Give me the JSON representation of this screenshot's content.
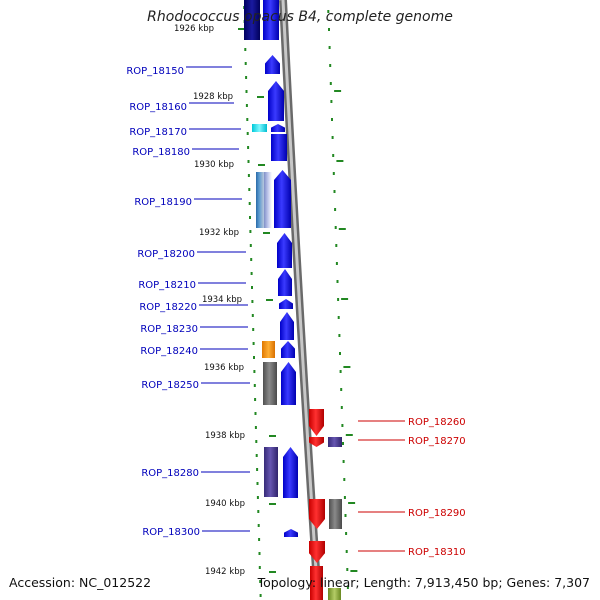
{
  "title": "Rhodococcus opacus B4, complete genome",
  "accession": "Accession: NC_012522",
  "topology": "Topology: linear; Length: 7,913,450 bp; Genes: 7,307",
  "colors": {
    "left_label": "#0000bb",
    "right_label": "#cc0000",
    "gene_blue": "#1010e0",
    "gene_red": "#ee0000",
    "gene_gray": "#707070",
    "gene_purple": "#4a3a90",
    "gene_cyan": "#00e5ee",
    "gene_orange": "#ff9900",
    "gene_green": "#88aa33",
    "tick": "#228822"
  },
  "kbp_labels": [
    "1926 kbp",
    "1928 kbp",
    "1930 kbp",
    "1932 kbp",
    "1934 kbp",
    "1936 kbp",
    "1938 kbp",
    "1940 kbp",
    "1942 kbp"
  ],
  "left_genes": [
    "ROP_18150",
    "ROP_18160",
    "ROP_18170",
    "ROP_18180",
    "ROP_18190",
    "ROP_18200",
    "ROP_18210",
    "ROP_18220",
    "ROP_18230",
    "ROP_18240",
    "ROP_18250",
    "ROP_18280",
    "ROP_18300"
  ],
  "right_genes": [
    "ROP_18260",
    "ROP_18270",
    "ROP_18290",
    "ROP_18310"
  ]
}
